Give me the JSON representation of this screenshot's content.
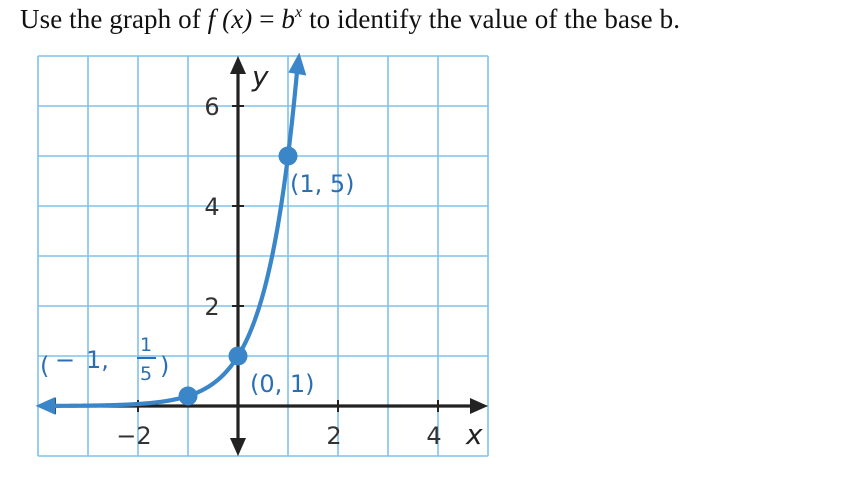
{
  "question": {
    "lead": "Use the graph of ",
    "f": "f",
    "arg": " (x)",
    "eq": " = ",
    "b": "b",
    "exp": "x",
    "tail": " to identify the value of the base b."
  },
  "chart_data": {
    "type": "line",
    "xlim": [
      -4,
      5
    ],
    "ylim": [
      -1,
      7
    ],
    "grid": true,
    "grid_step": 1,
    "xlabel": "x",
    "ylabel": "y",
    "x_ticks": [
      {
        "value": -2,
        "label": "−2"
      },
      {
        "value": 2,
        "label": "2"
      },
      {
        "value": 4,
        "label": "4"
      }
    ],
    "y_ticks": [
      {
        "value": 2,
        "label": "2"
      },
      {
        "value": 4,
        "label": "4"
      },
      {
        "value": 6,
        "label": "6"
      }
    ],
    "function": "b^x",
    "base": 5,
    "points": [
      {
        "x": -1,
        "y": 0.2,
        "label_parts": [
          "(",
          "−",
          "1,",
          "1",
          "5",
          ")"
        ]
      },
      {
        "x": 0,
        "y": 1,
        "label": "(0, 1)"
      },
      {
        "x": 1,
        "y": 5,
        "label": "(1, 5)"
      }
    ],
    "colors": {
      "grid": "#7ec3ea",
      "curve": "#3a86c8",
      "axis": "#222222",
      "label": "#2a6fb3"
    }
  }
}
